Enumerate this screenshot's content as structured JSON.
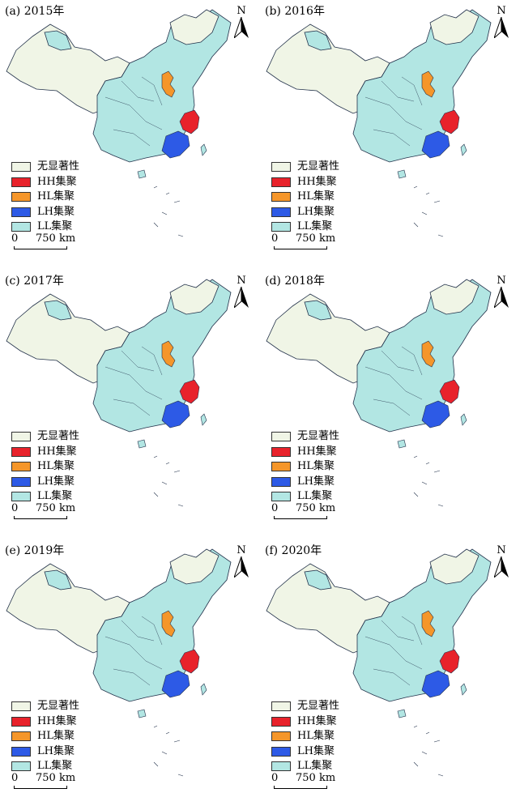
{
  "classes": [
    {
      "label": "无显著性",
      "color": "#f0f5e6"
    },
    {
      "label": "HH集聚",
      "color": "#e8222b"
    },
    {
      "label": "HL集聚",
      "color": "#f5962a"
    },
    {
      "label": "LH集聚",
      "color": "#2d5ae6"
    },
    {
      "label": "LL集聚",
      "color": "#b2e6e3"
    }
  ],
  "north_label": "N",
  "scale": {
    "zero": "0",
    "distance": "750 km"
  },
  "panels": [
    {
      "title": "(a) 2015年"
    },
    {
      "title": "(b) 2016年"
    },
    {
      "title": "(c) 2017年"
    },
    {
      "title": "(d) 2018年"
    },
    {
      "title": "(e) 2019年"
    },
    {
      "title": "(f) 2020年"
    }
  ]
}
